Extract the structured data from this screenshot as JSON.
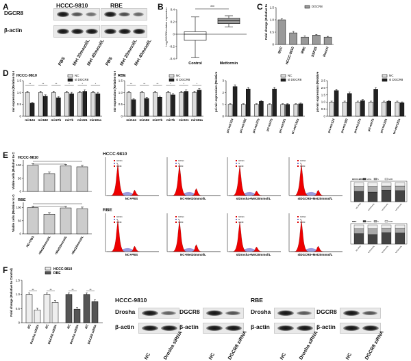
{
  "panels": {
    "A": {
      "letter": "A",
      "groups": [
        {
          "title": "HCCC-9810",
          "lanes": [
            "PBS",
            "Met 20mmol/L",
            "Met 40mmol/L"
          ],
          "intensity": [
            1.0,
            0.55,
            0.35
          ]
        },
        {
          "title": "RBE",
          "lanes": [
            "PBS",
            "Met 20mmol/L",
            "Met 40mmol/L"
          ],
          "intensity": [
            1.0,
            0.6,
            0.4
          ]
        }
      ],
      "rows": [
        "DGCR8",
        "β-actin"
      ]
    },
    "B": {
      "letter": "B",
      "ylabel": "Log₂DGCR8 relative expression",
      "yticks": [
        "0.4",
        "0.2",
        "0",
        "-0.2",
        "-0.4"
      ],
      "categories": [
        "Control",
        "Metformin"
      ],
      "sig": "***"
    },
    "C": {
      "letter": "C",
      "legend": "DGCR8",
      "ylabel": "Fold change (Relative to Control)",
      "yticks": [
        "1.5",
        "1.0",
        "0.5",
        "0"
      ]
    },
    "D": {
      "letter": "D",
      "sub": [
        {
          "title": "HCCC-9810",
          "ylabel": "mir expression (Relative to Control)",
          "legend": [
            "NC",
            "si DGCR8"
          ]
        },
        {
          "title": "RBE",
          "ylabel": "mir expression (Relative to Control)",
          "legend": [
            "NC",
            "si DGCR8"
          ]
        },
        {
          "title": "",
          "ylabel": "pri-mir expression (Relative to Control)",
          "legend": [
            "NC",
            "si DGCR8"
          ]
        },
        {
          "title": "",
          "ylabel": "pri-mir expression (Relative to Control)",
          "legend": [
            "NC",
            "si DGCR8"
          ]
        }
      ],
      "yticks_mir": [
        "1.5",
        "1.0",
        "0.5",
        "0"
      ],
      "yticks_pri": [
        "3",
        "2",
        "1",
        "0"
      ],
      "sig": "**"
    },
    "E": {
      "letter": "E",
      "left_titles": [
        "HCCC-9810",
        "RBE"
      ],
      "ylabel": "Viable cells (Relative to Control)",
      "yticks": [
        "100",
        "50",
        "0"
      ],
      "x_cats": [
        "NC+PBS",
        "NC+Met20mmol/L",
        "siDrosha+Met20mmol/L",
        "siDGCR8+Met20mmol/L"
      ],
      "flow_titles": [
        "HCCC-9810",
        "RBE"
      ],
      "flow_labels": [
        "NC+PBS",
        "NC+Met20mmol/L",
        "siDrosha+Met20mmol/L",
        "siDGCR8+Met20mmol/L"
      ],
      "flow_stats": [
        "G0/G1",
        "S",
        "G2/M"
      ],
      "stack_legend": [
        "G0/G1",
        "S",
        "G2/M"
      ]
    },
    "F": {
      "letter": "F",
      "legend": [
        "HCCC-9810",
        "RBE"
      ],
      "ylabel": "Fold change (Relative to Control)",
      "yticks": [
        "1.5",
        "1.0",
        "0.5",
        "0"
      ],
      "x_cats": [
        "NC",
        "Drosha siRNA",
        "NC",
        "DGCR8 siRNA",
        "NC",
        "Drosha siRNA",
        "NC",
        "DGCR8 siRNA"
      ],
      "blot_groups": [
        {
          "title": "HCCC-9810",
          "rows": [
            "Drosha",
            "β-actin"
          ],
          "lanes": [
            "NC",
            "Drosha siRNA"
          ]
        },
        {
          "title": "",
          "rows": [
            "DGCR8",
            "β-actin"
          ],
          "lanes": [
            "NC",
            "DGCR8 siRNA"
          ]
        },
        {
          "title": "RBE",
          "rows": [
            "Drosha",
            "β-actin"
          ],
          "lanes": [
            "NC",
            "Drosha siRNA"
          ]
        },
        {
          "title": "",
          "rows": [
            "DGCR8",
            "β-actin"
          ],
          "lanes": [
            "NC",
            "DGCR8 siRNA"
          ]
        }
      ]
    }
  },
  "chart_data": [
    {
      "type": "bar",
      "title": "",
      "ylabel": "Fold change (Relative to Control)",
      "legend": [
        "DGCR8"
      ],
      "categories": [
        "BEC",
        "HCCC-9810",
        "RBE",
        "SSP25",
        "Huccti"
      ],
      "values": [
        1.0,
        0.47,
        0.3,
        0.38,
        0.3
      ],
      "ylim": [
        0,
        1.5
      ]
    },
    {
      "type": "bar",
      "title": "HCCC-9810",
      "ylabel": "mir expression (Relative to Control)",
      "categories": [
        "mir124",
        "mir182",
        "mir27b",
        "mir7b",
        "mir221",
        "mir181a"
      ],
      "series": [
        {
          "name": "NC",
          "values": [
            1.0,
            1.0,
            1.0,
            1.0,
            1.0,
            1.0
          ]
        },
        {
          "name": "si DGCR8",
          "values": [
            0.55,
            0.85,
            0.78,
            0.95,
            1.05,
            0.95
          ]
        }
      ],
      "ylim": [
        0,
        1.5
      ]
    },
    {
      "type": "bar",
      "title": "RBE",
      "ylabel": "mir expression (Relative to Control)",
      "categories": [
        "mir124",
        "mir182",
        "mir27b",
        "mir7b",
        "mir221",
        "mir181a"
      ],
      "series": [
        {
          "name": "NC",
          "values": [
            1.0,
            1.0,
            1.0,
            1.0,
            1.0,
            1.0
          ]
        },
        {
          "name": "si DGCR8",
          "values": [
            0.7,
            0.75,
            0.8,
            0.9,
            1.05,
            1.1
          ]
        }
      ],
      "ylim": [
        0,
        1.5
      ]
    },
    {
      "type": "bar",
      "title": "",
      "ylabel": "pri-mir expression (Relative to Control)",
      "categories": [
        "pri-mir124",
        "pri-mir182",
        "pri-mir27b",
        "pri-mir7b",
        "pri-mir221",
        "pri-mir181a"
      ],
      "series": [
        {
          "name": "NC",
          "values": [
            1.0,
            1.0,
            1.0,
            1.0,
            1.0,
            1.0
          ]
        },
        {
          "name": "si DGCR8",
          "values": [
            2.5,
            2.3,
            1.25,
            2.3,
            1.0,
            1.05
          ]
        }
      ],
      "ylim": [
        0,
        3
      ]
    },
    {
      "type": "bar",
      "title": "",
      "ylabel": "pri-mir expression (Relative to Control)",
      "categories": [
        "pri-mir124",
        "pri-mir182",
        "pri-mir27b",
        "pri-mir7b",
        "pri-mir221",
        "pri-mir181a"
      ],
      "series": [
        {
          "name": "NC",
          "values": [
            1.0,
            1.0,
            1.0,
            1.0,
            1.0,
            1.0
          ]
        },
        {
          "name": "si DGCR8",
          "values": [
            1.8,
            1.6,
            1.1,
            1.9,
            1.05,
            0.95
          ]
        }
      ],
      "ylim": [
        0,
        2.5
      ]
    },
    {
      "type": "bar",
      "title": "HCCC-9810",
      "ylabel": "Viable cells (Relative to Control)",
      "categories": [
        "NC+PBS",
        "NC+Met20mmol/L",
        "siDrosha+Met20mmol/L",
        "siDGCR8+Met20mmol/L"
      ],
      "values": [
        100,
        68,
        97,
        94
      ],
      "ylim": [
        0,
        120
      ]
    },
    {
      "type": "bar",
      "title": "RBE",
      "ylabel": "Viable cells (Relative to Control)",
      "categories": [
        "NC+PBS",
        "NC+Met20mmol/L",
        "siDrosha+Met20mmol/L",
        "siDGCR8+Met20mmol/L"
      ],
      "values": [
        100,
        75,
        99,
        96
      ],
      "ylim": [
        0,
        120
      ]
    },
    {
      "type": "bar",
      "title": "",
      "ylabel": "Fold change (Relative to Control)",
      "categories": [
        "NC",
        "Drosha siRNA",
        "NC",
        "DGCR8 siRNA",
        "NC",
        "Drosha siRNA",
        "NC",
        "DGCR8 siRNA"
      ],
      "series": [
        {
          "name": "HCCC-9810",
          "values": [
            1.0,
            0.45,
            1.0,
            0.72,
            null,
            null,
            null,
            null
          ]
        },
        {
          "name": "RBE",
          "values": [
            null,
            null,
            null,
            null,
            1.0,
            0.48,
            1.0,
            0.75
          ]
        }
      ],
      "ylim": [
        0,
        1.5
      ]
    }
  ]
}
